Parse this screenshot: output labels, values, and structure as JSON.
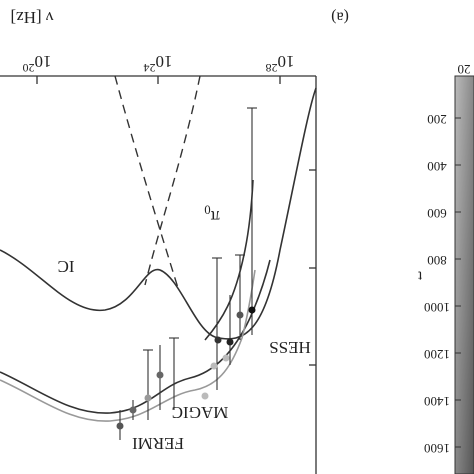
{
  "figure": {
    "panel_label": "(a)",
    "x_axis_label": "ν [Hz]",
    "x_ticks": [
      {
        "base": "10",
        "exp": "20"
      },
      {
        "base": "10",
        "exp": "24"
      },
      {
        "base": "10",
        "exp": "28"
      }
    ],
    "curve_labels": {
      "ic": "IC",
      "pi0": {
        "base": "π",
        "sub": "0"
      },
      "hess": "HESS",
      "magic": "MAGIC",
      "fermi": "FERMI"
    }
  },
  "side_panel": {
    "top_tick": "20",
    "y_axis_label": "t",
    "y_ticks": [
      "200",
      "400",
      "600",
      "800",
      "1000",
      "1200",
      "1400",
      "1600"
    ]
  }
}
